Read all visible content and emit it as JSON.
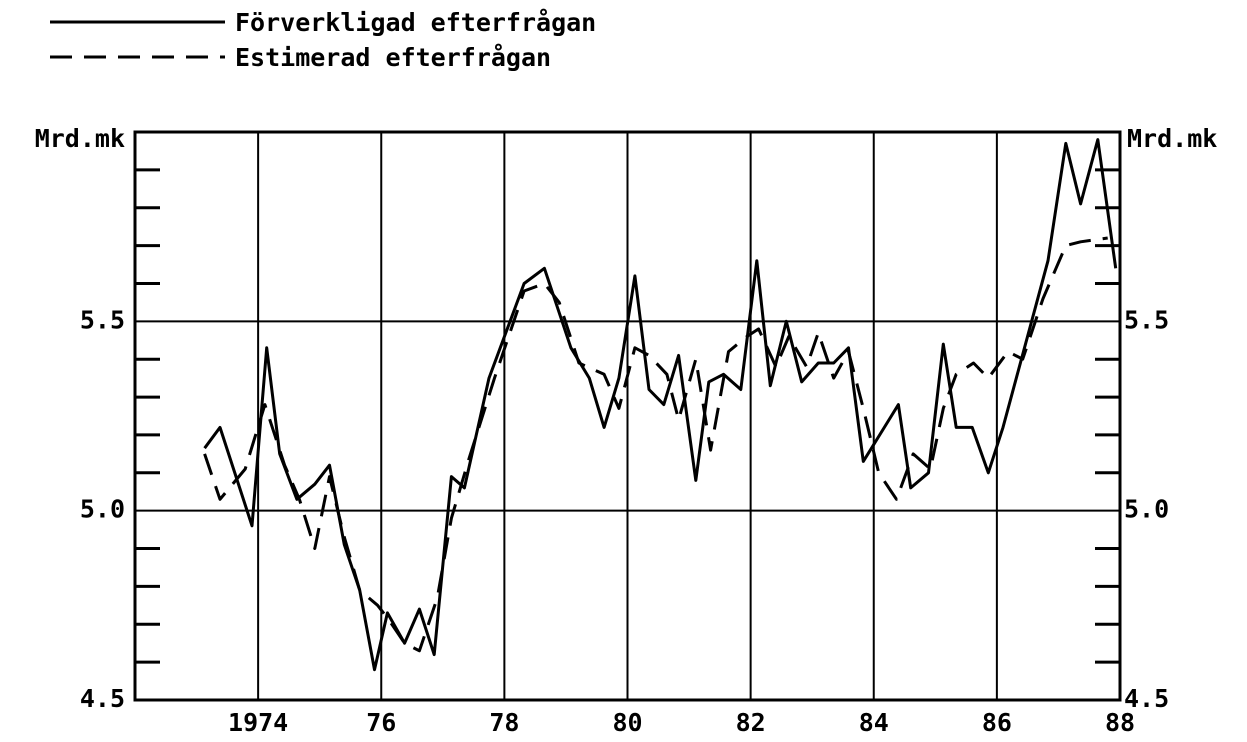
{
  "chart_data": {
    "type": "line",
    "ylabel": "Mrd.mk",
    "y2label": "Mrd.mk",
    "xlim": [
      1972,
      1988
    ],
    "xticks": [
      {
        "value": 1974,
        "label": "1974"
      },
      {
        "value": 1976,
        "label": "76"
      },
      {
        "value": 1978,
        "label": "78"
      },
      {
        "value": 1980,
        "label": "80"
      },
      {
        "value": 1982,
        "label": "82"
      },
      {
        "value": 1984,
        "label": "84"
      },
      {
        "value": 1986,
        "label": "86"
      },
      {
        "value": 1988,
        "label": "88"
      }
    ],
    "ylim": [
      4.5,
      6.0
    ],
    "yticks": [
      4.5,
      {
        "value": 5,
        "label": "5.0"
      },
      5.5
    ],
    "y2lim": [
      4.5,
      6.0
    ],
    "y2ticks": [
      4.5,
      {
        "value": 5,
        "label": "5.0"
      },
      5.5
    ],
    "yminor_ticks": [
      4.6,
      4.7,
      4.8,
      4.9,
      5.1,
      5.2,
      5.3,
      5.4,
      5.6,
      5.7,
      5.8,
      5.9
    ],
    "grid": true,
    "legend": "top left",
    "series": [
      {
        "name": "Förverkligad efterfrågan",
        "color": "#000000",
        "dash": "solid",
        "x": [
          1973.13,
          1973.38,
          1973.9,
          1974.14,
          1974.35,
          1974.63,
          1974.92,
          1975.16,
          1975.4,
          1975.65,
          1975.89,
          1976.1,
          1976.38,
          1976.62,
          1976.86,
          1977.14,
          1977.35,
          1977.75,
          1978.32,
          1978.65,
          1979.08,
          1979.38,
          1979.62,
          1979.86,
          1980.12,
          1980.35,
          1980.59,
          1980.83,
          1981.11,
          1981.32,
          1981.56,
          1981.84,
          1982.1,
          1982.32,
          1982.58,
          1982.83,
          1983.1,
          1983.35,
          1983.59,
          1983.83,
          1984.4,
          1984.6,
          1984.89,
          1985.13,
          1985.34,
          1985.6,
          1985.86,
          1986.1,
          1986.83,
          1987.12,
          1987.36,
          1987.64,
          1987.93
        ],
        "values": [
          5.165,
          5.22,
          4.96,
          5.43,
          5.15,
          5.03,
          5.07,
          5.12,
          4.91,
          4.79,
          4.58,
          4.73,
          4.65,
          4.74,
          4.62,
          5.09,
          5.06,
          5.35,
          5.6,
          5.64,
          5.43,
          5.35,
          5.22,
          5.35,
          5.62,
          5.32,
          5.28,
          5.41,
          5.08,
          5.34,
          5.36,
          5.32,
          5.66,
          5.33,
          5.5,
          5.34,
          5.39,
          5.39,
          5.43,
          5.13,
          5.28,
          5.06,
          5.1,
          5.44,
          5.22,
          5.22,
          5.1,
          5.22,
          5.66,
          5.97,
          5.81,
          5.98,
          5.64
        ]
      },
      {
        "name": "Estimerad efterfrågan",
        "color": "#000000",
        "dash": "dashed",
        "x": [
          1973.13,
          1973.38,
          1973.79,
          1974.11,
          1974.43,
          1974.67,
          1974.92,
          1975.16,
          1975.4,
          1975.65,
          1975.94,
          1976.13,
          1976.38,
          1976.62,
          1976.91,
          1977.14,
          1977.43,
          1977.84,
          1978.32,
          1978.65,
          1978.89,
          1979.21,
          1979.62,
          1979.86,
          1980.12,
          1980.35,
          1980.64,
          1980.83,
          1981.11,
          1981.35,
          1981.64,
          1981.94,
          1982.13,
          1982.41,
          1982.62,
          1982.91,
          1983.1,
          1983.35,
          1983.59,
          1983.83,
          1984.08,
          1984.37,
          1984.64,
          1984.92,
          1985.13,
          1985.34,
          1985.62,
          1985.86,
          1986.18,
          1986.42,
          1986.75,
          1987.12,
          1987.36,
          1987.8
        ],
        "values": [
          5.15,
          5.03,
          5.11,
          5.28,
          5.12,
          5.03,
          4.9,
          5.09,
          4.93,
          4.79,
          4.75,
          4.71,
          4.65,
          4.63,
          4.77,
          4.98,
          5.14,
          5.35,
          5.58,
          5.6,
          5.55,
          5.39,
          5.36,
          5.27,
          5.43,
          5.41,
          5.36,
          5.24,
          5.4,
          5.16,
          5.42,
          5.46,
          5.48,
          5.38,
          5.46,
          5.38,
          5.47,
          5.35,
          5.42,
          5.27,
          5.1,
          5.03,
          5.15,
          5.11,
          5.27,
          5.36,
          5.39,
          5.35,
          5.42,
          5.4,
          5.56,
          5.7,
          5.71,
          5.72
        ]
      }
    ]
  }
}
